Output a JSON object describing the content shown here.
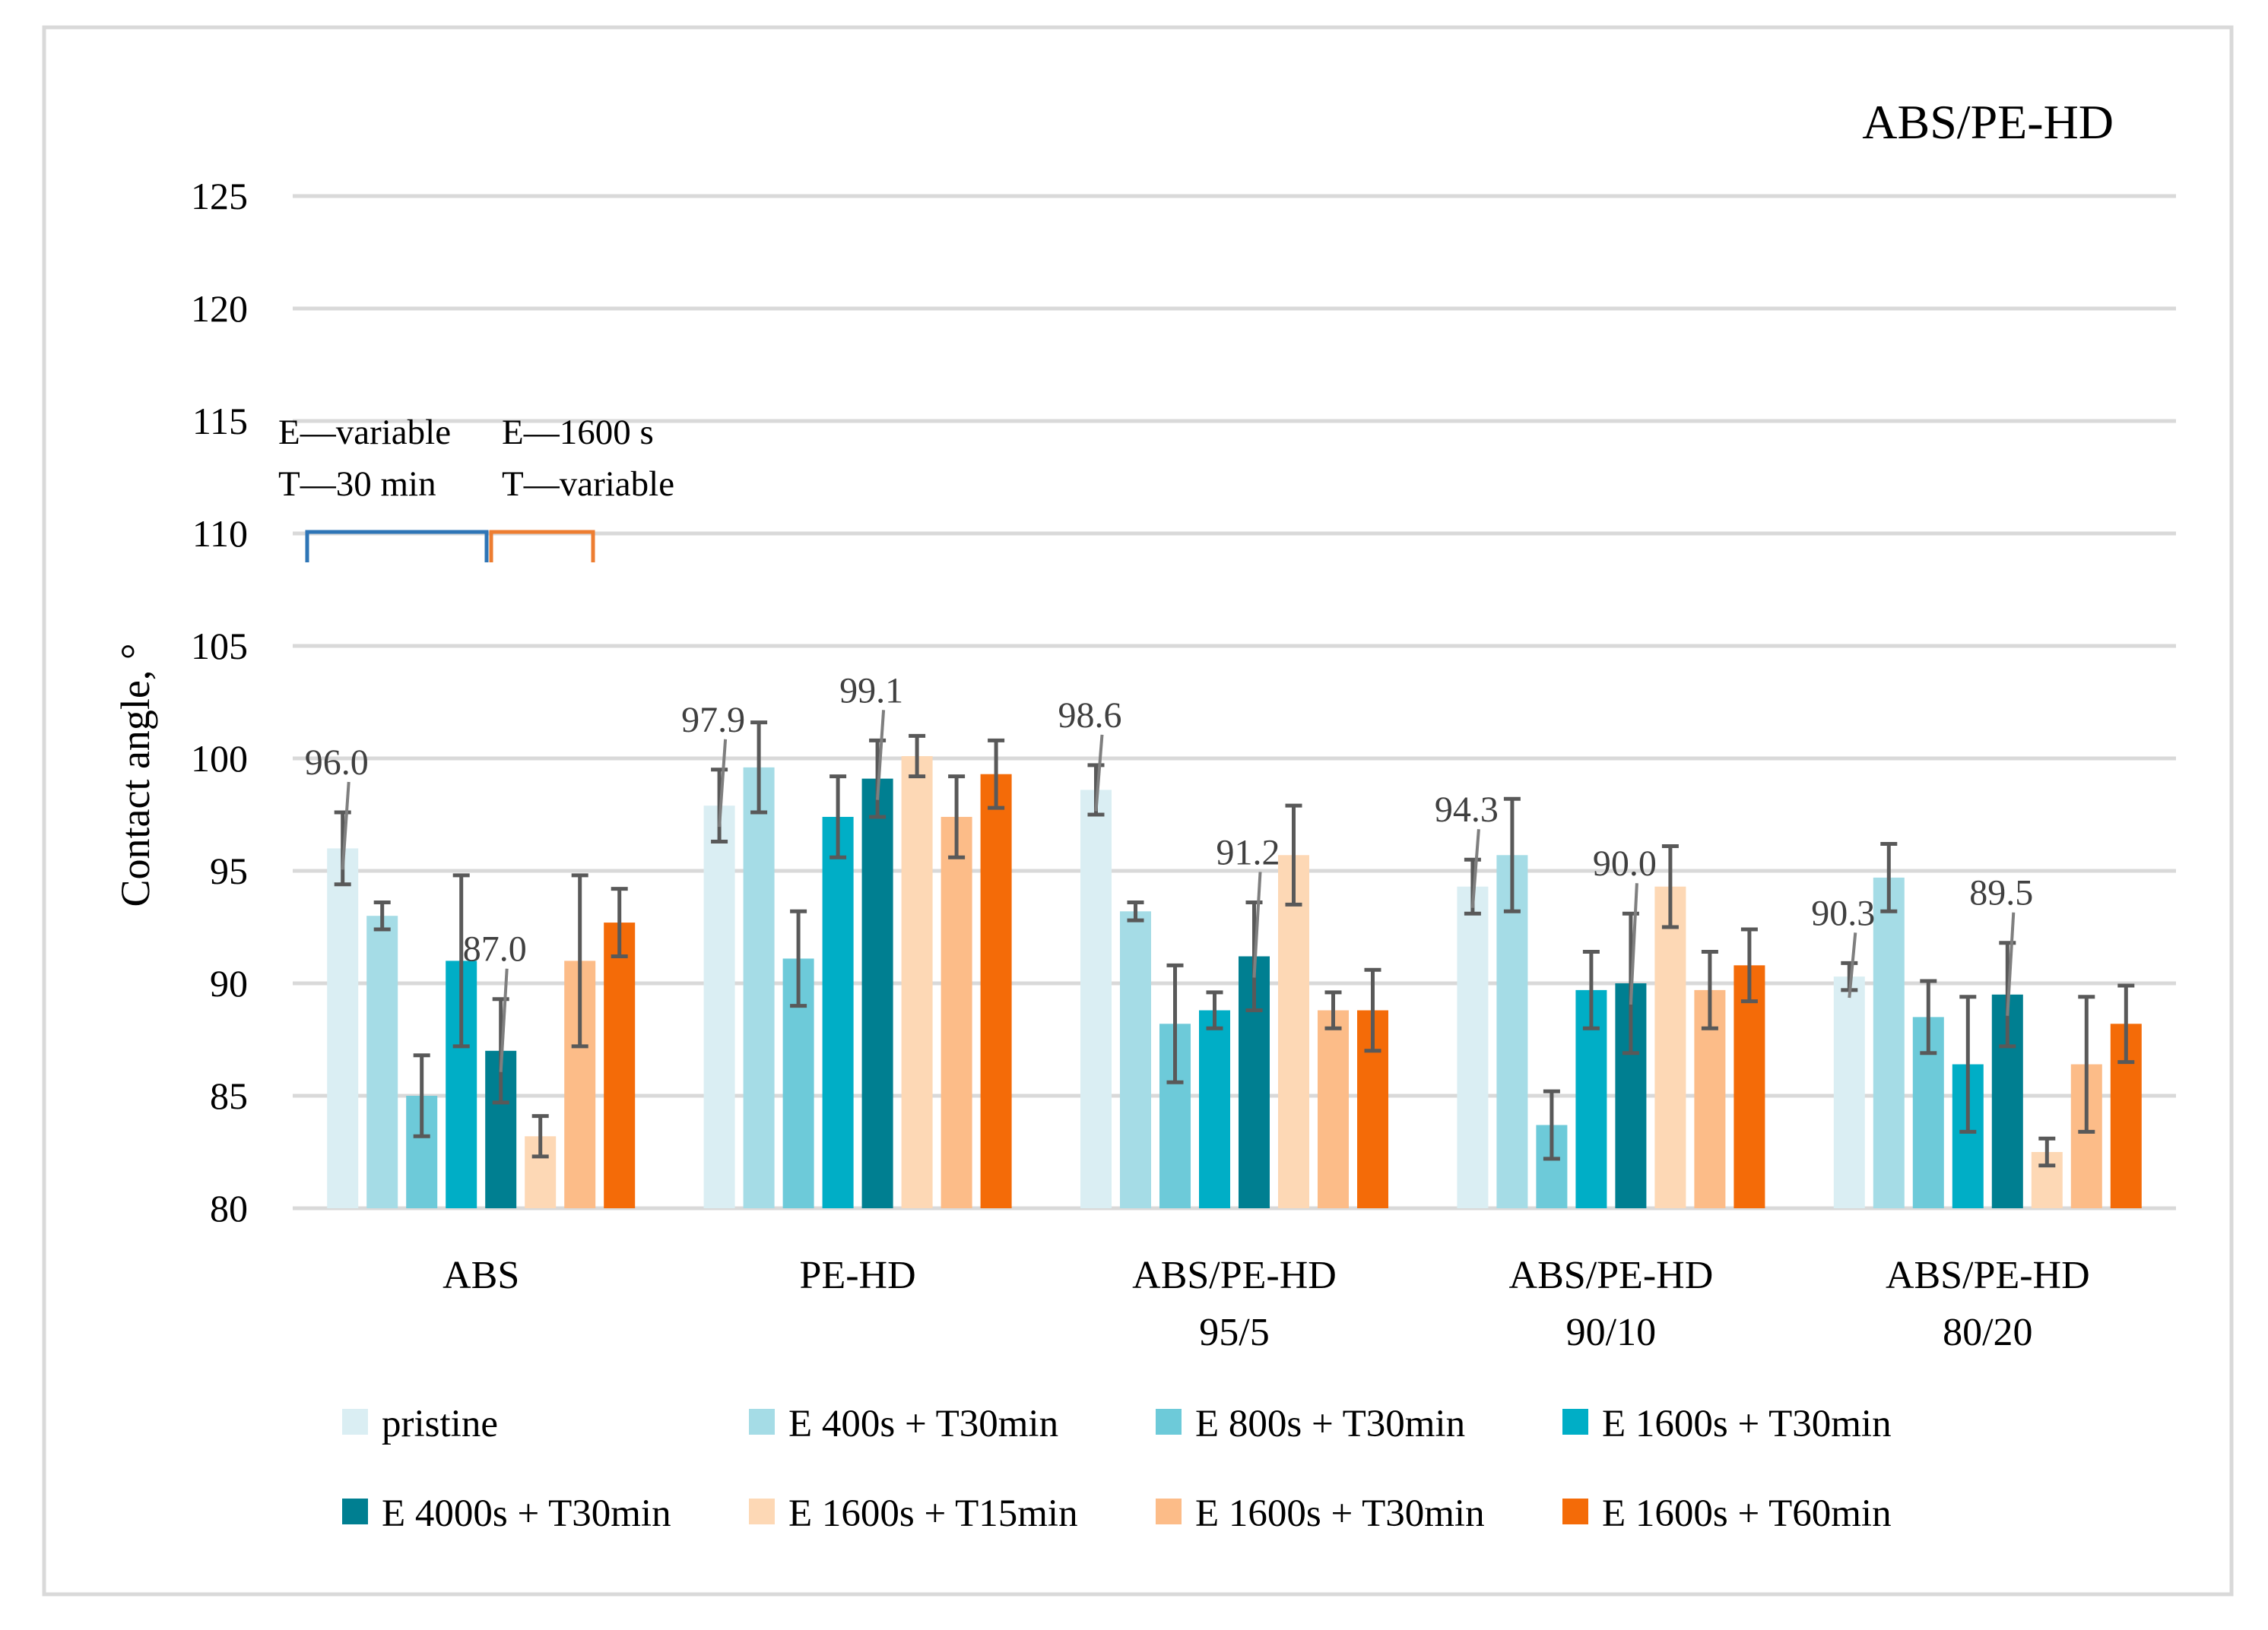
{
  "chart_data": {
    "type": "bar",
    "title": "ABS/PE-HD",
    "ylabel": "Contact angle, °",
    "xlabel": "",
    "ylim": [
      80,
      125
    ],
    "yticks": [
      80,
      85,
      90,
      95,
      100,
      105,
      110,
      115,
      120,
      125
    ],
    "grid": true,
    "legend_position": "bottom",
    "categories": [
      [
        "ABS"
      ],
      [
        "PE-HD"
      ],
      [
        "ABS/PE-HD",
        "95/5"
      ],
      [
        "ABS/PE-HD",
        "90/10"
      ],
      [
        "ABS/PE-HD",
        "80/20"
      ]
    ],
    "series": [
      {
        "name": "pristine",
        "color": "#daeef3",
        "values": [
          96.0,
          97.9,
          98.6,
          94.3,
          90.3
        ],
        "errors": [
          1.6,
          1.6,
          1.1,
          1.2,
          0.6
        ]
      },
      {
        "name": "E 400s  + T30min",
        "color": "#a5dce6",
        "values": [
          93.0,
          99.6,
          93.2,
          95.7,
          94.7
        ],
        "errors": [
          0.6,
          2.0,
          0.4,
          2.5,
          1.5
        ]
      },
      {
        "name": "E 800s  + T30min",
        "color": "#6dcad9",
        "values": [
          85.0,
          91.1,
          88.2,
          83.7,
          88.5
        ],
        "errors": [
          1.8,
          2.1,
          2.6,
          1.5,
          1.6
        ]
      },
      {
        "name": "E 1600s  + T30min",
        "color": "#00aec6",
        "values": [
          91.0,
          97.4,
          88.8,
          89.7,
          86.4
        ],
        "errors": [
          3.8,
          1.8,
          0.8,
          1.7,
          3.0
        ]
      },
      {
        "name": "E 4000s  + T30min",
        "color": "#007f91",
        "values": [
          87.0,
          99.1,
          91.2,
          90.0,
          89.5
        ],
        "errors": [
          2.3,
          1.7,
          2.4,
          3.1,
          2.3
        ]
      },
      {
        "name": "E 1600s  + T15min",
        "color": "#fdd8b5",
        "values": [
          83.2,
          100.1,
          95.7,
          94.3,
          82.5
        ],
        "errors": [
          0.9,
          0.9,
          2.2,
          1.8,
          0.6
        ]
      },
      {
        "name": "E 1600s  + T30min",
        "color": "#fcbc88",
        "values": [
          91.0,
          97.4,
          88.8,
          89.7,
          86.4
        ],
        "errors": [
          3.8,
          1.8,
          0.8,
          1.7,
          3.0
        ]
      },
      {
        "name": "E 1600s  + T60min",
        "color": "#f46b08",
        "values": [
          92.7,
          99.3,
          88.8,
          90.8,
          88.2
        ],
        "errors": [
          1.5,
          1.5,
          1.8,
          1.6,
          1.7
        ]
      }
    ],
    "data_labels": [
      {
        "category_index": 0,
        "series_index": 0,
        "text": "96.0"
      },
      {
        "category_index": 0,
        "series_index": 4,
        "text": "87.0"
      },
      {
        "category_index": 1,
        "series_index": 0,
        "text": "97.9"
      },
      {
        "category_index": 1,
        "series_index": 4,
        "text": "99.1"
      },
      {
        "category_index": 2,
        "series_index": 0,
        "text": "98.6"
      },
      {
        "category_index": 2,
        "series_index": 4,
        "text": "91.2"
      },
      {
        "category_index": 3,
        "series_index": 0,
        "text": "94.3"
      },
      {
        "category_index": 3,
        "series_index": 4,
        "text": "90.0"
      },
      {
        "category_index": 4,
        "series_index": 0,
        "text": "90.3"
      },
      {
        "category_index": 4,
        "series_index": 4,
        "text": "89.5"
      }
    ],
    "annotations": {
      "left_line1": "E—variable",
      "left_line2": "T—30 min",
      "left_bracket_color": "#2e75b6",
      "right_line1": "E—1600 s",
      "right_line2": "T—variable",
      "right_bracket_color": "#ed7d31"
    }
  }
}
